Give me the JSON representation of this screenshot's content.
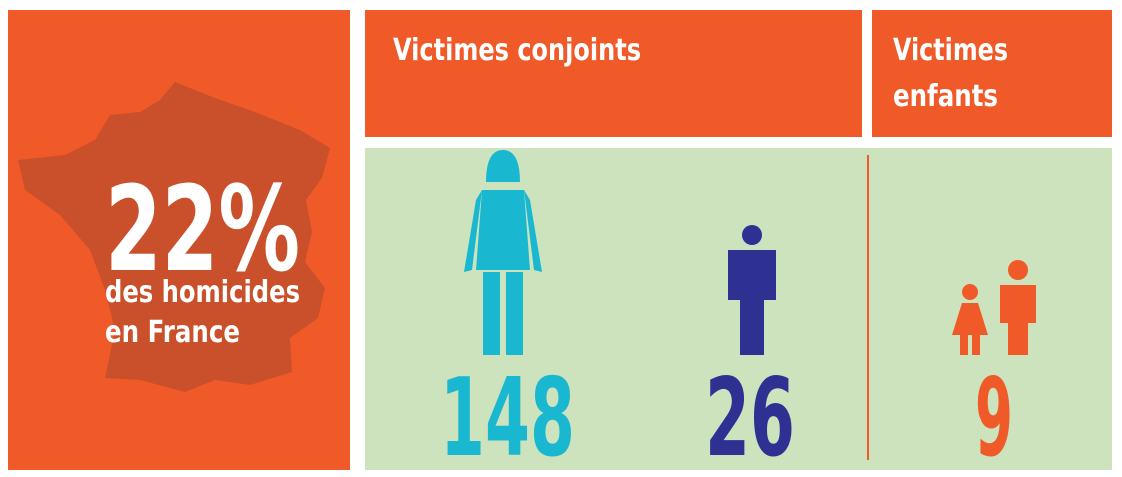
{
  "left": {
    "stat": "22%",
    "caption": [
      "des homicides",
      "en France"
    ]
  },
  "conjoints": {
    "title": "Victimes conjoints",
    "women": "148",
    "men": "26"
  },
  "enfants": {
    "title": [
      "Victimes",
      "enfants"
    ],
    "children": "9"
  }
}
